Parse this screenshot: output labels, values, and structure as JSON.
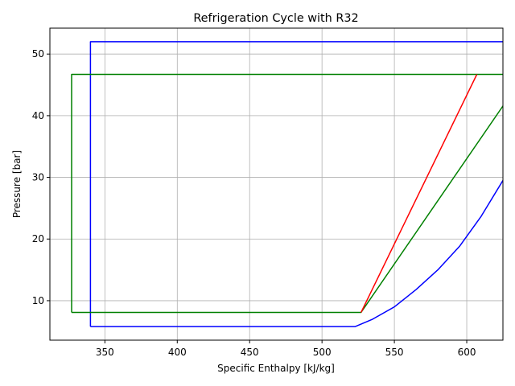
{
  "chart_data": {
    "type": "line",
    "title": "Refrigeration Cycle with R32",
    "xlabel": "Specific Enthalpy [kJ/kg]",
    "ylabel": "Pressure [bar]",
    "xlim": [
      312,
      625
    ],
    "ylim": [
      3.6,
      54.2
    ],
    "xticks": [
      350,
      400,
      450,
      500,
      550,
      600,
      650
    ],
    "yticks": [
      10,
      20,
      30,
      40,
      50
    ],
    "grid": true,
    "series": [
      {
        "color": "#0000ff",
        "points": [
          [
            340,
            5.8
          ],
          [
            523,
            5.8
          ],
          [
            535,
            7.0
          ],
          [
            550,
            9.0
          ],
          [
            565,
            11.8
          ],
          [
            580,
            15.0
          ],
          [
            595,
            18.8
          ],
          [
            610,
            23.7
          ],
          [
            625,
            29.5
          ],
          [
            640,
            36.0
          ],
          [
            655,
            43.5
          ],
          [
            670,
            52.0
          ],
          [
            340,
            52.0
          ],
          [
            340,
            5.8
          ]
        ]
      },
      {
        "color": "#008000",
        "points": [
          [
            327,
            8.1
          ],
          [
            527,
            8.1
          ],
          [
            640,
            46.7
          ],
          [
            327,
            46.7
          ],
          [
            327,
            8.1
          ]
        ]
      },
      {
        "color": "#ff0000",
        "points": [
          [
            527,
            8.1
          ],
          [
            607,
            46.7
          ]
        ]
      }
    ]
  }
}
